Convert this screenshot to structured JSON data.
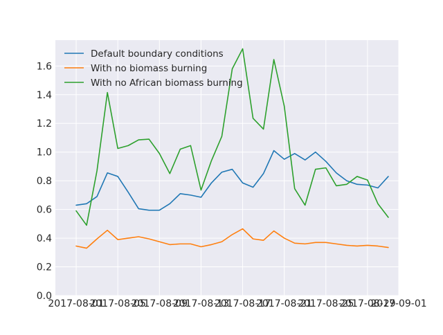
{
  "chart_data": {
    "type": "line",
    "title": "",
    "xlabel": "",
    "ylabel": "",
    "x": [
      "2017-08-01",
      "2017-08-02",
      "2017-08-03",
      "2017-08-04",
      "2017-08-05",
      "2017-08-06",
      "2017-08-07",
      "2017-08-08",
      "2017-08-09",
      "2017-08-10",
      "2017-08-11",
      "2017-08-12",
      "2017-08-13",
      "2017-08-14",
      "2017-08-15",
      "2017-08-16",
      "2017-08-17",
      "2017-08-18",
      "2017-08-19",
      "2017-08-20",
      "2017-08-21",
      "2017-08-22",
      "2017-08-23",
      "2017-08-24",
      "2017-08-25",
      "2017-08-26",
      "2017-08-27",
      "2017-08-28",
      "2017-08-29",
      "2017-08-30",
      "2017-08-31"
    ],
    "xlim": [
      "2017-07-30",
      "2017-09-01"
    ],
    "ylim": [
      0.0,
      1.78
    ],
    "x_ticks": [
      "2017-08-01",
      "2017-08-05",
      "2017-08-09",
      "2017-08-13",
      "2017-08-17",
      "2017-08-21",
      "2017-08-25",
      "2017-08-29",
      "2017-09-01"
    ],
    "y_ticks": [
      "0.0",
      "0.2",
      "0.4",
      "0.6",
      "0.8",
      "1.0",
      "1.2",
      "1.4",
      "1.6"
    ],
    "grid": true,
    "legend_position": "top-left",
    "background": "#eaeaf2",
    "series": [
      {
        "name": "Default boundary conditions",
        "color": "#1f77b4",
        "values": [
          0.63,
          0.64,
          0.69,
          0.855,
          0.83,
          0.72,
          0.605,
          0.595,
          0.595,
          0.64,
          0.71,
          0.7,
          0.685,
          0.785,
          0.86,
          0.88,
          0.785,
          0.755,
          0.85,
          1.01,
          0.95,
          0.99,
          0.945,
          1.0,
          0.935,
          0.855,
          0.8,
          0.775,
          0.77,
          0.75,
          0.83
        ]
      },
      {
        "name": "With no biomass burning",
        "color": "#ff7f0e",
        "values": [
          0.345,
          0.33,
          0.395,
          0.455,
          0.39,
          0.4,
          0.41,
          0.395,
          0.375,
          0.355,
          0.36,
          0.36,
          0.34,
          0.355,
          0.375,
          0.425,
          0.465,
          0.395,
          0.385,
          0.45,
          0.4,
          0.365,
          0.36,
          0.37,
          0.37,
          0.36,
          0.35,
          0.345,
          0.35,
          0.345,
          0.335
        ]
      },
      {
        "name": "With no African biomass burning",
        "color": "#2ca02c",
        "values": [
          0.59,
          0.49,
          0.87,
          1.415,
          1.025,
          1.045,
          1.085,
          1.09,
          0.99,
          0.85,
          1.02,
          1.045,
          0.735,
          0.94,
          1.11,
          1.58,
          1.72,
          1.235,
          1.16,
          1.645,
          1.32,
          0.745,
          0.63,
          0.88,
          0.89,
          0.765,
          0.775,
          0.83,
          0.805,
          0.64,
          0.545
        ]
      }
    ]
  }
}
